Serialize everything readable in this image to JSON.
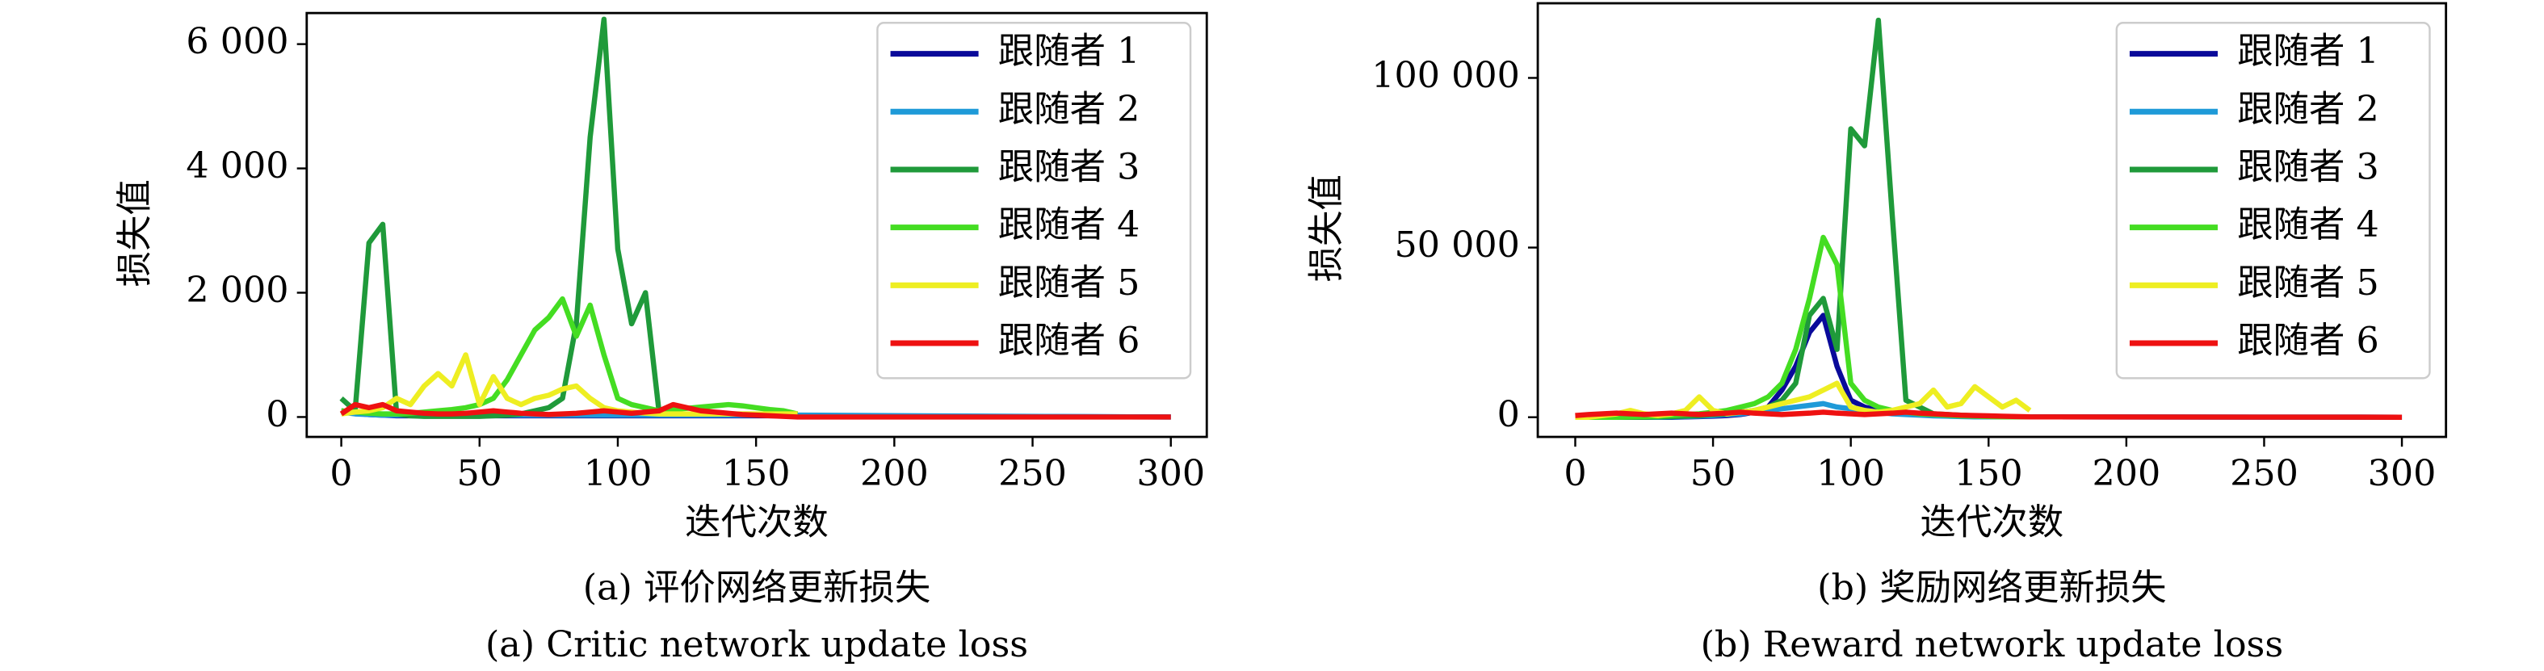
{
  "chart_data": [
    {
      "type": "line",
      "x_label": "迭代次数",
      "y_label": "损失值",
      "caption_zh": "(a) 评价网络更新损失",
      "caption_en": "(a) Critic network update loss",
      "legend": "upper right",
      "xlim": [
        -12.5,
        313
      ],
      "ylim": [
        -320,
        6500
      ],
      "xticks": [
        0,
        50,
        100,
        150,
        200,
        250,
        300
      ],
      "yticks": [
        0,
        {
          "value": 2000,
          "label": "2 000"
        },
        {
          "value": 4000,
          "label": "4 000"
        },
        {
          "value": 6000,
          "label": "6 000"
        }
      ],
      "x": [
        0,
        5,
        10,
        15,
        20,
        25,
        30,
        35,
        40,
        45,
        50,
        55,
        60,
        65,
        70,
        75,
        80,
        85,
        90,
        95,
        100,
        105,
        110,
        115,
        120,
        125,
        130,
        135,
        140,
        145,
        150,
        155,
        160,
        165,
        300
      ],
      "series": [
        {
          "name": "跟随者 1",
          "color": "#0a0a9a",
          "values": [
            100,
            60,
            40,
            30,
            20,
            20,
            20,
            20,
            20,
            20,
            20,
            20,
            20,
            20,
            20,
            20,
            20,
            20,
            20,
            20,
            20,
            20,
            20,
            20,
            20,
            20,
            20,
            20,
            20,
            20,
            20,
            20,
            20,
            20,
            0
          ]
        },
        {
          "name": "跟随者 2",
          "color": "#1f9ad8",
          "values": [
            80,
            50,
            40,
            30,
            30,
            30,
            30,
            30,
            30,
            30,
            30,
            30,
            30,
            30,
            30,
            30,
            30,
            30,
            30,
            30,
            30,
            30,
            30,
            30,
            30,
            30,
            30,
            30,
            30,
            30,
            30,
            30,
            30,
            30,
            0
          ]
        },
        {
          "name": "跟随者 3",
          "color": "#1f9a3a",
          "values": [
            300,
            100,
            2800,
            3100,
            50,
            20,
            10,
            10,
            10,
            10,
            10,
            20,
            30,
            50,
            100,
            150,
            300,
            1500,
            4500,
            6400,
            2700,
            1500,
            2000,
            50,
            null,
            null,
            null,
            null,
            null,
            null,
            null,
            null,
            null,
            null,
            null
          ]
        },
        {
          "name": "跟随者 4",
          "color": "#44dd22",
          "values": [
            100,
            80,
            60,
            50,
            50,
            60,
            80,
            100,
            120,
            150,
            200,
            300,
            600,
            1000,
            1400,
            1600,
            1900,
            1300,
            1800,
            1000,
            300,
            200,
            150,
            100,
            120,
            140,
            160,
            180,
            200,
            180,
            150,
            120,
            100,
            50,
            null
          ]
        },
        {
          "name": "跟随者 5",
          "color": "#eeee22",
          "values": [
            50,
            80,
            100,
            150,
            300,
            200,
            500,
            700,
            500,
            1000,
            200,
            650,
            300,
            200,
            300,
            350,
            450,
            500,
            300,
            150,
            100,
            80,
            60,
            50,
            50,
            50,
            50,
            50,
            50,
            50,
            50,
            50,
            50,
            50,
            null
          ]
        },
        {
          "name": "跟随者 6",
          "color": "#ee1111",
          "values": [
            50,
            200,
            150,
            200,
            100,
            80,
            60,
            50,
            50,
            60,
            80,
            100,
            80,
            60,
            50,
            40,
            50,
            60,
            80,
            100,
            80,
            60,
            80,
            100,
            200,
            150,
            100,
            80,
            60,
            40,
            30,
            20,
            10,
            0,
            0
          ]
        }
      ]
    },
    {
      "type": "line",
      "x_label": "迭代次数",
      "y_label": "损失值",
      "caption_zh": "(b) 奖励网络更新损失",
      "caption_en": "(b) Reward network update loss",
      "legend": "upper right",
      "xlim": [
        -13.6,
        316
      ],
      "ylim": [
        -5800,
        122000
      ],
      "xticks": [
        0,
        50,
        100,
        150,
        200,
        250,
        300
      ],
      "yticks": [
        0,
        {
          "value": 50000,
          "label": "50 000"
        },
        {
          "value": 100000,
          "label": "100 000"
        }
      ],
      "x": [
        0,
        5,
        10,
        15,
        20,
        25,
        30,
        35,
        40,
        45,
        50,
        55,
        60,
        65,
        70,
        75,
        80,
        85,
        90,
        95,
        100,
        105,
        110,
        115,
        120,
        125,
        130,
        135,
        140,
        145,
        150,
        155,
        160,
        165,
        300
      ],
      "series": [
        {
          "name": "跟随者 1",
          "color": "#0a0a9a",
          "values": [
            0,
            0,
            0,
            0,
            0,
            0,
            0,
            0,
            100,
            200,
            300,
            500,
            800,
            1500,
            3000,
            8000,
            15000,
            25000,
            30000,
            15000,
            5000,
            3000,
            2000,
            1500,
            1000,
            800,
            600,
            400,
            300,
            200,
            100,
            100,
            100,
            100,
            0
          ]
        },
        {
          "name": "跟随者 2",
          "color": "#1f9ad8",
          "values": [
            0,
            0,
            0,
            0,
            0,
            0,
            0,
            100,
            200,
            300,
            500,
            800,
            1000,
            1500,
            2000,
            2500,
            3000,
            3500,
            4000,
            3000,
            2500,
            2000,
            1500,
            1000,
            800,
            600,
            400,
            300,
            200,
            100,
            100,
            100,
            100,
            100,
            0
          ]
        },
        {
          "name": "跟随者 3",
          "color": "#1f9a3a",
          "values": [
            0,
            0,
            0,
            0,
            0,
            0,
            100,
            200,
            300,
            500,
            800,
            1000,
            1500,
            2000,
            3000,
            5000,
            10000,
            30000,
            35000,
            20000,
            85000,
            80000,
            117000,
            60000,
            5000,
            3000,
            1000,
            800,
            600,
            400,
            300,
            200,
            100,
            100,
            null
          ]
        },
        {
          "name": "跟随者 4",
          "color": "#44dd22",
          "values": [
            0,
            0,
            0,
            0,
            100,
            200,
            300,
            500,
            800,
            1000,
            1500,
            2000,
            3000,
            4000,
            6000,
            10000,
            20000,
            35000,
            53000,
            45000,
            10000,
            5000,
            3000,
            2000,
            1500,
            1000,
            800,
            600,
            400,
            300,
            200,
            100,
            100,
            100,
            null
          ]
        },
        {
          "name": "跟随者 5",
          "color": "#eeee22",
          "values": [
            0,
            0,
            500,
            1000,
            2000,
            1000,
            500,
            1000,
            2000,
            6000,
            2000,
            1000,
            1500,
            2000,
            3000,
            4000,
            5000,
            6000,
            8000,
            10000,
            3000,
            2000,
            1500,
            2000,
            3000,
            4000,
            8000,
            3000,
            4000,
            9000,
            6000,
            3000,
            5000,
            2000,
            null
          ]
        },
        {
          "name": "跟随者 6",
          "color": "#ee1111",
          "values": [
            500,
            800,
            1000,
            1200,
            1000,
            800,
            1000,
            1200,
            1000,
            800,
            1000,
            1200,
            1500,
            1200,
            1000,
            800,
            1000,
            1200,
            1500,
            1200,
            1000,
            800,
            1000,
            1200,
            1500,
            1200,
            1000,
            800,
            600,
            500,
            400,
            300,
            200,
            100,
            0
          ]
        }
      ]
    }
  ]
}
